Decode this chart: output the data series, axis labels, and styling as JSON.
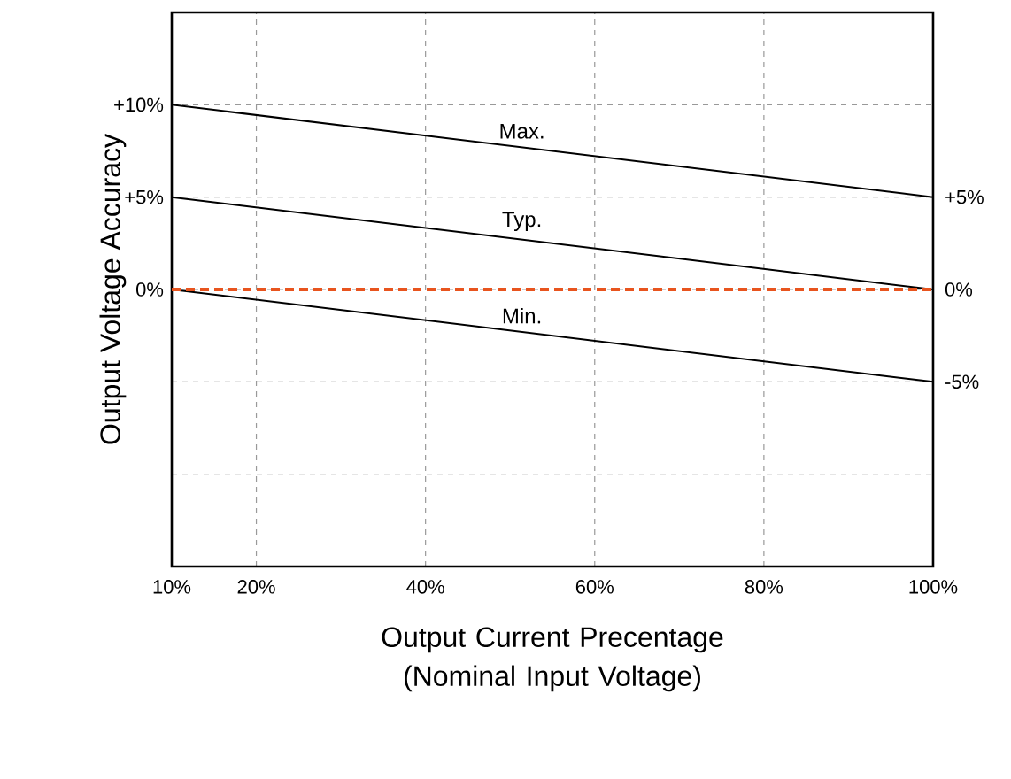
{
  "chart_data": {
    "type": "line",
    "xlabel": "Output Current Precentage (Nominal Input Voltage)",
    "ylabel": "Output Voltage Accuracy",
    "x": [
      10,
      100
    ],
    "series": [
      {
        "name": "Max.",
        "color": "#000000",
        "values": [
          10,
          5
        ]
      },
      {
        "name": "Typ.",
        "color": "#000000",
        "values": [
          5,
          0
        ]
      },
      {
        "name": "Min.",
        "color": "#000000",
        "values": [
          0,
          -5
        ]
      }
    ],
    "xlim": [
      10,
      100
    ],
    "xticks": [
      {
        "value": 10,
        "label": "10%"
      },
      {
        "value": 20,
        "label": "20%"
      },
      {
        "value": 40,
        "label": "40%"
      },
      {
        "value": 60,
        "label": "60%"
      },
      {
        "value": 80,
        "label": "80%"
      },
      {
        "value": 100,
        "label": "100%"
      }
    ],
    "ylim": [
      -15,
      15
    ],
    "yticks": [
      {
        "value": 10,
        "label": "+10%"
      },
      {
        "value": 5,
        "label": "+5%"
      },
      {
        "value": 0,
        "label": "0%"
      },
      {
        "value": -5,
        "label": null
      },
      {
        "value": -10,
        "label": null
      }
    ],
    "y2lim": [
      -15,
      15
    ],
    "y2ticks": [
      {
        "value": 5,
        "label": "+5%"
      },
      {
        "value": 0,
        "label": "0%"
      },
      {
        "value": -5,
        "label": "-5%"
      }
    ],
    "ref_lines": [
      {
        "axis": "y",
        "value": 0,
        "color": "#e8541e",
        "line_style": "dashed"
      }
    ],
    "grid": true
  }
}
